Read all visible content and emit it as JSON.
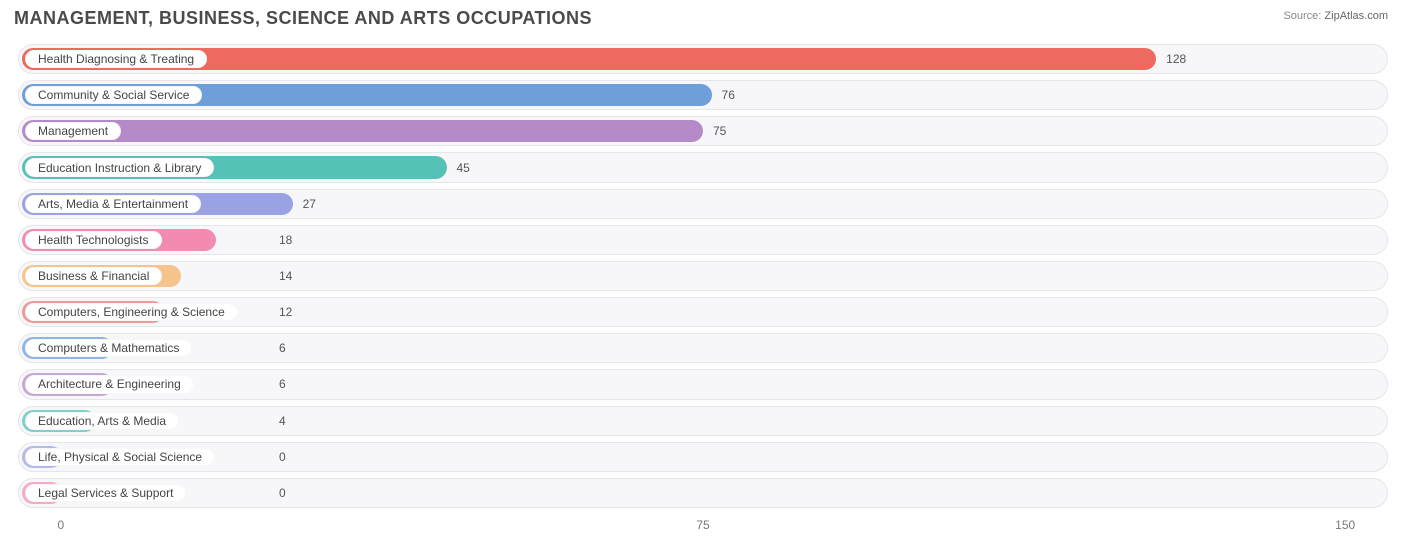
{
  "title": "MANAGEMENT, BUSINESS, SCIENCE AND ARTS OCCUPATIONS",
  "source_label": "Source:",
  "source_value": "ZipAtlas.com",
  "chart": {
    "type": "bar",
    "orientation": "horizontal",
    "background_color": "#ffffff",
    "track_color": "#f7f7f9",
    "track_border_color": "#e5e5ea",
    "pill_bg": "#ffffff",
    "label_fontsize": 12,
    "title_fontsize": 18,
    "title_color": "#4a4a4a",
    "value_color": "#555555",
    "xmin": -5,
    "xmax": 155,
    "ticks": [
      0,
      75,
      150
    ],
    "bar_radius": 14,
    "row_gap": 6,
    "series": [
      {
        "label": "Health Diagnosing & Treating",
        "value": 128,
        "color": "#ee6a5e"
      },
      {
        "label": "Community & Social Service",
        "value": 76,
        "color": "#6f9fd8"
      },
      {
        "label": "Management",
        "value": 75,
        "color": "#b58ac8"
      },
      {
        "label": "Education Instruction & Library",
        "value": 45,
        "color": "#56c1b6"
      },
      {
        "label": "Arts, Media & Entertainment",
        "value": 27,
        "color": "#9aa2e3"
      },
      {
        "label": "Health Technologists",
        "value": 18,
        "color": "#f28ab2"
      },
      {
        "label": "Business & Financial",
        "value": 14,
        "color": "#f6c38b"
      },
      {
        "label": "Computers, Engineering & Science",
        "value": 12,
        "color": "#ef9a9a"
      },
      {
        "label": "Computers & Mathematics",
        "value": 6,
        "color": "#8fb6e3"
      },
      {
        "label": "Architecture & Engineering",
        "value": 6,
        "color": "#c6a8d6"
      },
      {
        "label": "Education, Arts & Media",
        "value": 4,
        "color": "#7fd0c6"
      },
      {
        "label": "Life, Physical & Social Science",
        "value": 0,
        "color": "#b3b9ea"
      },
      {
        "label": "Legal Services & Support",
        "value": 0,
        "color": "#f5a9c6"
      }
    ]
  }
}
